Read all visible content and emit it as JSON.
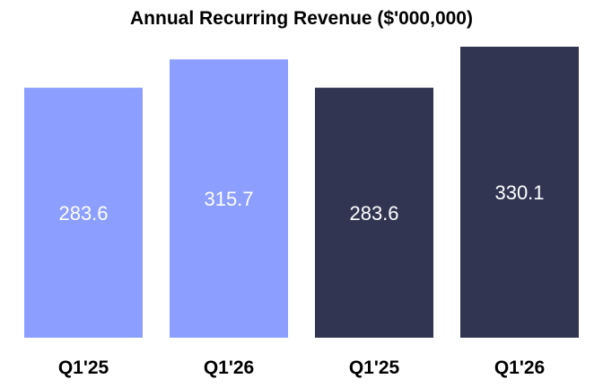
{
  "chart_data": {
    "type": "bar",
    "title": "Annual Recurring Revenue ($'000,000)",
    "categories": [
      "Q1'25",
      "Q1'26",
      "Q1'25",
      "Q1'26"
    ],
    "values": [
      283.6,
      315.7,
      283.6,
      330.1
    ],
    "value_labels": [
      "283.6",
      "315.7",
      "283.6",
      "330.1"
    ],
    "bar_colors": [
      "#8C9EFF",
      "#8C9EFF",
      "#313552",
      "#313552"
    ],
    "value_label_color": "#ffffff",
    "xlabel": "",
    "ylabel": "",
    "ylim": [
      0,
      330.1
    ],
    "grid": false,
    "legend": "none"
  }
}
